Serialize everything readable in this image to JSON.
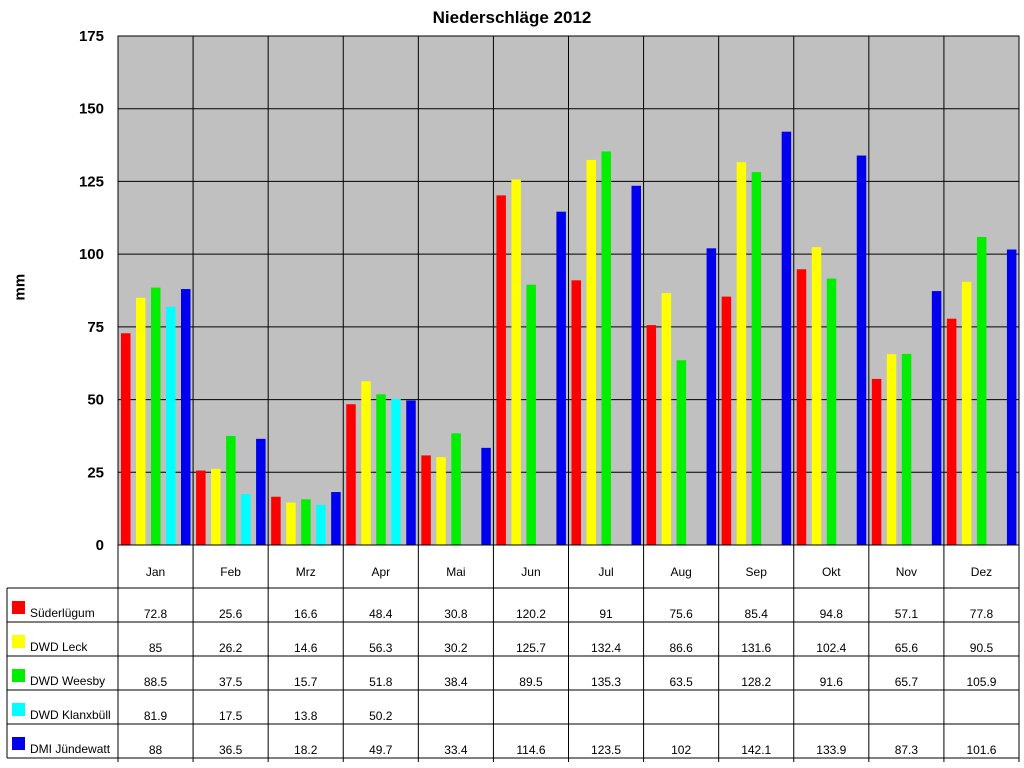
{
  "chart_data": {
    "type": "bar",
    "title": "Niederschläge 2012",
    "ylabel": "mm",
    "xlabel": "",
    "ylim": [
      0,
      175
    ],
    "yticks": [
      0,
      25,
      50,
      75,
      100,
      125,
      150,
      175
    ],
    "grid": true,
    "legend": "data-table-left",
    "plot_background": "#c0c0c0",
    "categories": [
      "Jan",
      "Feb",
      "Mrz",
      "Apr",
      "Mai",
      "Jun",
      "Jul",
      "Aug",
      "Sep",
      "Okt",
      "Nov",
      "Dez"
    ],
    "series": [
      {
        "name": "Süderlügum",
        "color": "#ff0000",
        "values": [
          72.8,
          25.6,
          16.6,
          48.4,
          30.8,
          120.2,
          91,
          75.6,
          85.4,
          94.8,
          57.1,
          77.8
        ]
      },
      {
        "name": "DWD Leck",
        "color": "#ffff00",
        "values": [
          85,
          26.2,
          14.6,
          56.3,
          30.2,
          125.7,
          132.4,
          86.6,
          131.6,
          102.4,
          65.6,
          90.5
        ]
      },
      {
        "name": "DWD Weesby",
        "color": "#00ee00",
        "values": [
          88.5,
          37.5,
          15.7,
          51.8,
          38.4,
          89.5,
          135.3,
          63.5,
          128.2,
          91.6,
          65.7,
          105.9
        ]
      },
      {
        "name": "DWD Klanxbüll",
        "color": "#00ffff",
        "values": [
          81.9,
          17.5,
          13.8,
          50.2,
          null,
          null,
          null,
          null,
          null,
          null,
          null,
          null
        ]
      },
      {
        "name": "DMI Jündewatt",
        "color": "#0000ee",
        "values": [
          88,
          36.5,
          18.2,
          49.7,
          33.4,
          114.6,
          123.5,
          102,
          142.1,
          133.9,
          87.3,
          101.6
        ]
      }
    ]
  }
}
